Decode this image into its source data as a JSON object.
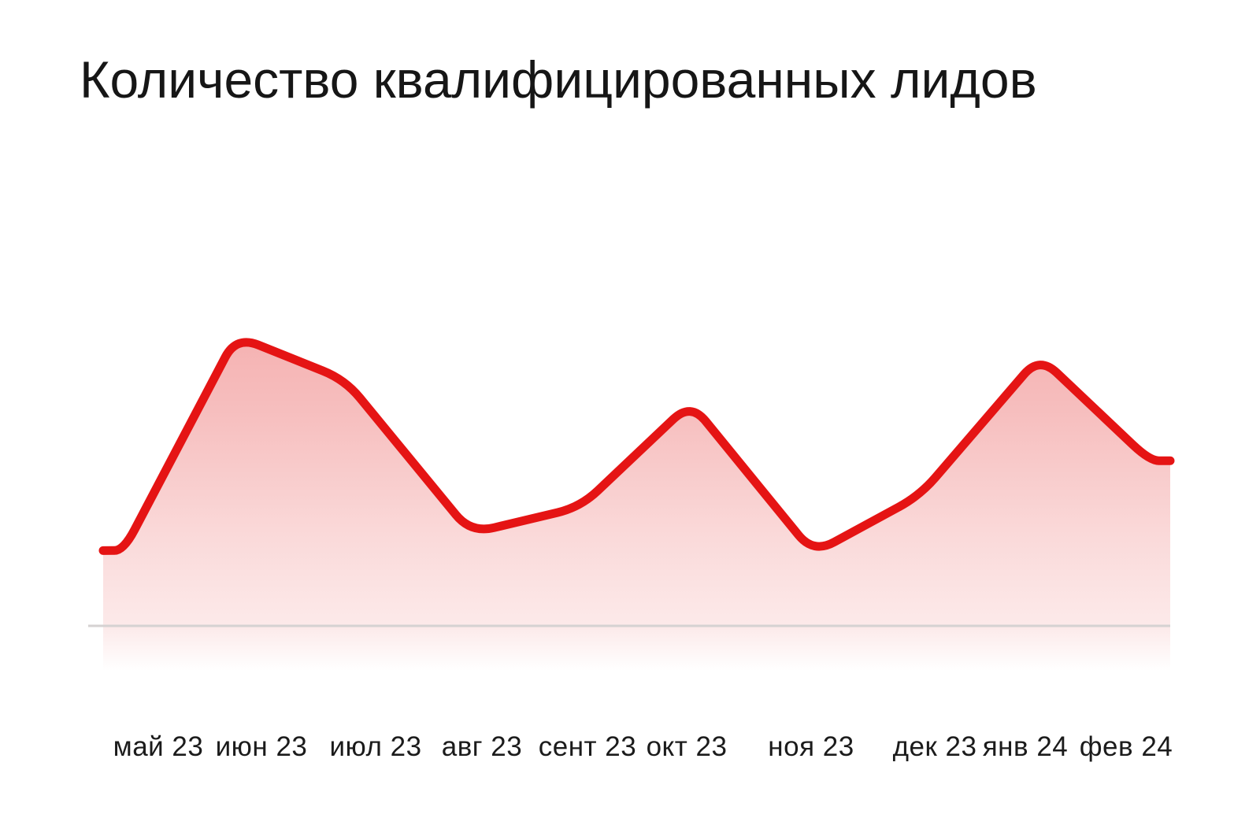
{
  "chart_data": {
    "type": "area",
    "title": "Количество квалифицированных лидов",
    "categories": [
      "май 23",
      "июн 23",
      "июл 23",
      "авг 23",
      "сент 23",
      "окт 23",
      "ноя 23",
      "дек 23",
      "янв 24",
      "фев 24"
    ],
    "values": [
      26,
      100,
      85,
      32,
      41,
      77,
      25,
      45,
      93,
      57
    ],
    "xlabel": "",
    "ylabel": "",
    "ylim": [
      0,
      100
    ],
    "grid": false,
    "legend": false,
    "y_axis_visible": false,
    "colors": {
      "line": "#e51414",
      "fill_base": "#e01212",
      "axis_line": "#d5d2d2",
      "text": "#1b1b1b",
      "title_text": "#161616",
      "background": "#ffffff"
    }
  }
}
